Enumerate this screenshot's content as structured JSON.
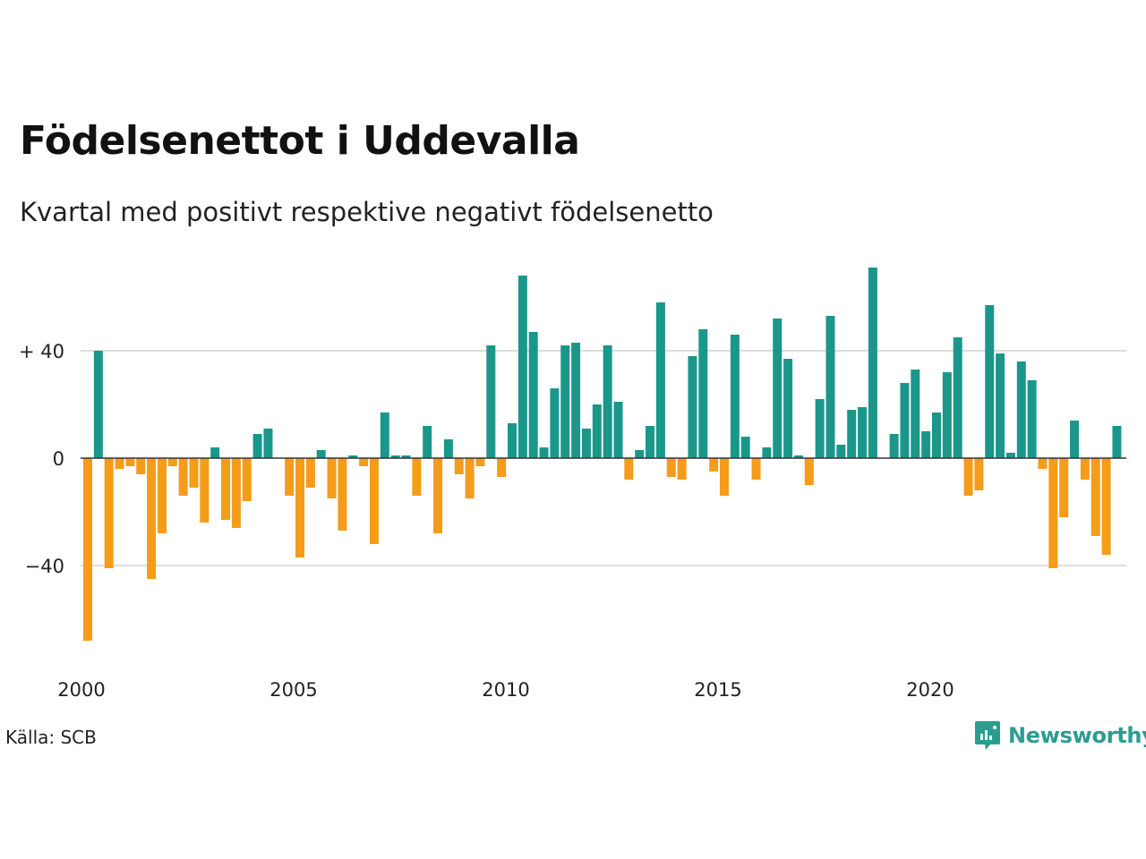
{
  "title": "Födelsenettot i Uddevalla",
  "subtitle": "Kvartal med positivt respektive negativt födelsenetto",
  "source": "Källa: SCB",
  "brand": "Newsworthy",
  "colors": {
    "positive": "#1a978a",
    "negative": "#f59c1a",
    "grid": "#dddddd",
    "zero": "#333333",
    "brand": "#2a9d8f"
  },
  "chart_data": {
    "type": "bar",
    "x_start_year": 2000,
    "x_ticks": [
      "2000",
      "2005",
      "2010",
      "2015",
      "2020"
    ],
    "y_ticks": [
      "+ 40",
      "0",
      "−40"
    ],
    "y_tick_values": [
      40,
      0,
      -40
    ],
    "ylim": [
      -72,
      73
    ],
    "grid": true,
    "values": [
      -68,
      40,
      -41,
      -4,
      -3,
      -6,
      -45,
      -28,
      -3,
      -14,
      -11,
      -24,
      4,
      -23,
      -26,
      -16,
      9,
      11,
      0,
      -14,
      -37,
      -11,
      3,
      -15,
      -27,
      1,
      -3,
      -32,
      17,
      1,
      1,
      -14,
      12,
      -28,
      7,
      -6,
      -15,
      -3,
      42,
      -7,
      13,
      68,
      47,
      4,
      26,
      42,
      43,
      11,
      20,
      42,
      21,
      -8,
      3,
      12,
      58,
      -7,
      -8,
      38,
      48,
      -5,
      -14,
      46,
      8,
      -8,
      4,
      52,
      37,
      1,
      -10,
      22,
      53,
      5,
      18,
      19,
      71,
      0,
      9,
      28,
      33,
      10,
      17,
      32,
      45,
      -14,
      -12,
      57,
      39,
      2,
      36,
      29,
      -4,
      -41,
      -22,
      14,
      -8,
      -29,
      -36,
      12
    ]
  }
}
